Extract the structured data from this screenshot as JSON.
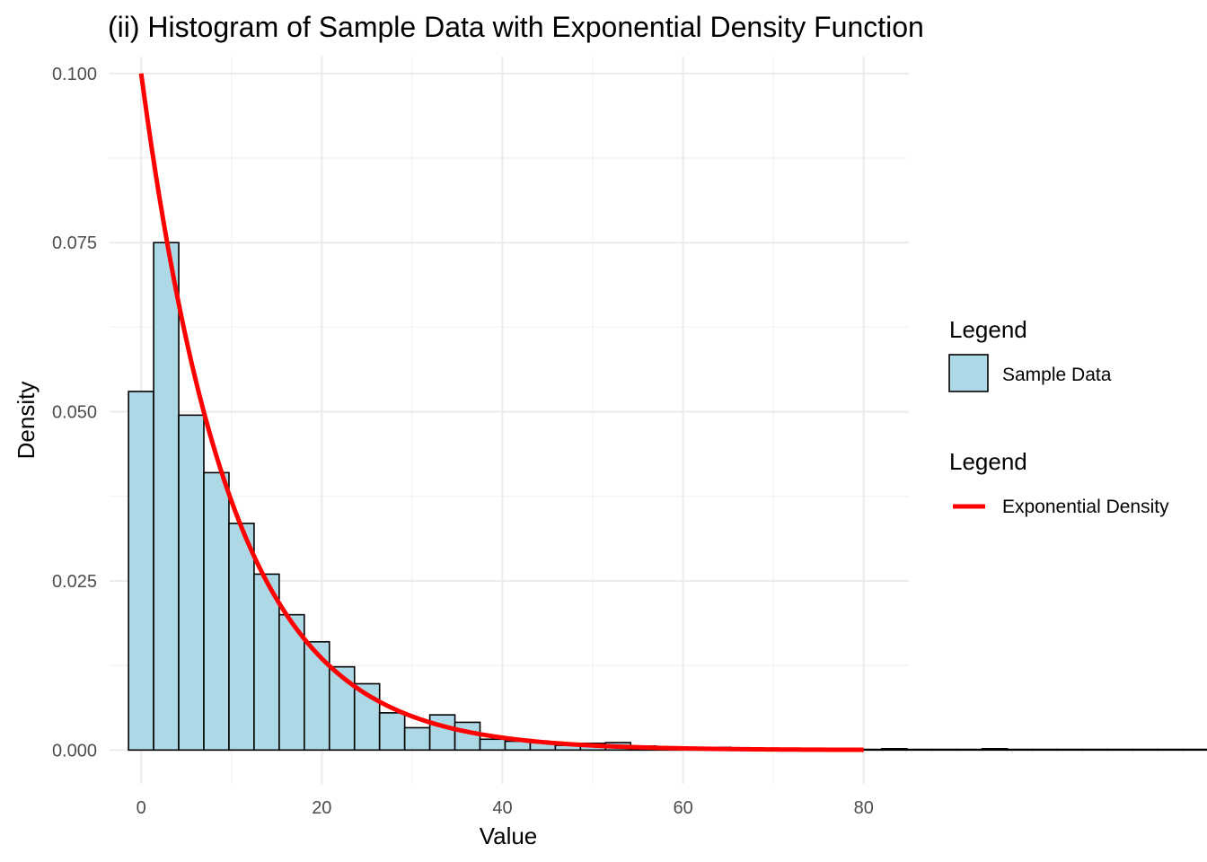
{
  "chart_data": {
    "type": "bar",
    "title": "(ii) Histogram of Sample Data with Exponential Density Function",
    "xlabel": "Value",
    "ylabel": "Density",
    "xlim": [
      -3.5,
      85
    ],
    "ylim": [
      -0.005,
      0.1025
    ],
    "x_ticks": [
      0,
      20,
      40,
      60,
      80
    ],
    "x_tick_labels": [
      "0",
      "20",
      "40",
      "60",
      "80"
    ],
    "y_ticks": [
      0.0,
      0.025,
      0.05,
      0.075,
      0.1
    ],
    "y_tick_labels": [
      "0.000",
      "0.025",
      "0.050",
      "0.075",
      "0.100"
    ],
    "grid": true,
    "legend_position": "right",
    "histogram": {
      "name": "Sample Data",
      "fill": "#add8e6",
      "stroke": "#000000",
      "bin_start": -1.4,
      "bin_width": 2.78,
      "values": [
        0.053,
        0.075,
        0.0495,
        0.041,
        0.0335,
        0.026,
        0.02,
        0.016,
        0.0123,
        0.0098,
        0.0055,
        0.0033,
        0.0052,
        0.0041,
        0.0016,
        0.0013,
        0.0012,
        0.0007,
        0.001,
        0.0011,
        0.0006,
        0.0004,
        0.0003,
        0.0004,
        0.0002,
        0.0001,
        0.0001,
        0.0001,
        0.0002,
        0.0001,
        0.0002,
        0.0001,
        0.0001,
        0.0001,
        0.0002,
        0.0001,
        0.0001,
        0.0001,
        0.0001,
        0.0001,
        0.0001,
        0.0001,
        0.0001,
        0.0001,
        0.0001,
        0.0001,
        0.0001,
        0.0001,
        0.0001,
        0.0001,
        0.0001,
        0.0001,
        0.0009,
        0.0002,
        0.0001,
        0.0001,
        0.0001,
        0.0001,
        0.0006
      ]
    },
    "density_curve": {
      "name": "Exponential Density",
      "color": "#ff0000",
      "rate": 0.1,
      "x_range": [
        0,
        80
      ]
    },
    "legend": [
      {
        "title": "Legend",
        "label": "Sample Data",
        "kind": "fill"
      },
      {
        "title": "Legend",
        "label": "Exponential Density",
        "kind": "line"
      }
    ]
  }
}
